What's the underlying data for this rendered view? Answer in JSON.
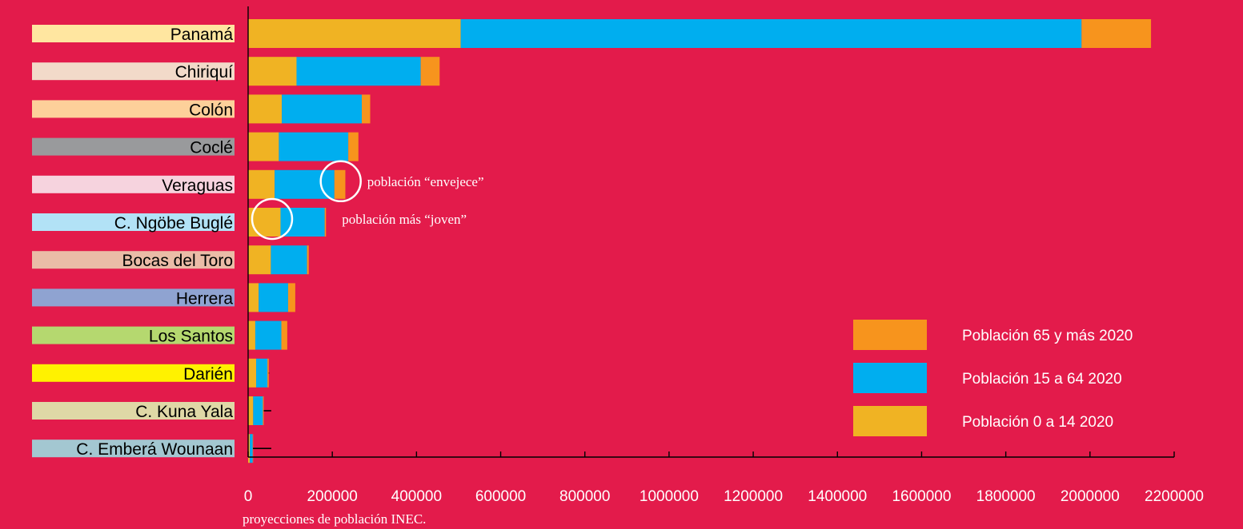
{
  "chart_data": {
    "type": "bar",
    "orientation": "horizontal",
    "stacked": true,
    "categories": [
      "Panamá",
      "Chiriquí",
      "Colón",
      "Coclé",
      "Veraguas",
      "C. Ngöbe Buglé",
      "Bocas del Toro",
      "Herrera",
      "Los Santos",
      "Darién",
      "C. Kuna Yala",
      "C. Emberá Wounaan"
    ],
    "category_colors": [
      "#ffe6a0",
      "#f2dac9",
      "#fdd09a",
      "#999a9c",
      "#f6d3de",
      "#b2e2f6",
      "#eabca7",
      "#8fa3d1",
      "#b5d86f",
      "#fff200",
      "#dfd8a6",
      "#a3c7d1"
    ],
    "series": [
      {
        "name": "Población 0 a 14 2020",
        "color": "#f0b323",
        "values": [
          505000,
          115000,
          80000,
          73000,
          63000,
          77000,
          54000,
          25000,
          17000,
          19000,
          12000,
          4000
        ]
      },
      {
        "name": "Población 15 a 64 2020",
        "color": "#00aeef",
        "values": [
          1475000,
          295000,
          190000,
          165000,
          142000,
          105000,
          86000,
          70000,
          62000,
          27000,
          23000,
          7000
        ]
      },
      {
        "name": "Población 65 y más 2020",
        "color": "#f7941d",
        "values": [
          165000,
          45000,
          20000,
          24000,
          26000,
          3000,
          4000,
          17000,
          14000,
          3000,
          2000,
          500
        ]
      }
    ],
    "legend_order": [
      "Población 65 y más 2020",
      "Población 15 a 64 2020",
      "Población 0 a 14 2020"
    ],
    "xlim": [
      0,
      2200000
    ],
    "xticks": [
      0,
      200000,
      400000,
      600000,
      800000,
      1000000,
      1200000,
      1400000,
      1600000,
      1800000,
      2000000,
      2200000
    ],
    "xtick_labels": [
      "0",
      "200000",
      "400000",
      "600000",
      "800000",
      "1000000",
      "1200000",
      "1400000",
      "1600000",
      "1800000",
      "2000000",
      "2200000"
    ],
    "error_bars": [
      {
        "category": "Darién",
        "value": 50000
      },
      {
        "category": "C. Kuna Yala",
        "value": 55000
      },
      {
        "category": "C. Emberá Wounaan",
        "value": 55000
      }
    ],
    "annotations": [
      {
        "text": "población “envejece”",
        "category": "Veraguas",
        "circle_at": 220000
      },
      {
        "text": "población más “joven”",
        "category": "C. Ngöbe Buglé",
        "circle_at": 57000
      }
    ],
    "legend_position": "bottom-right",
    "grid": false,
    "title": "",
    "xlabel": "",
    "ylabel": ""
  },
  "source_note": "proyecciones de población INEC.",
  "colors": {
    "background": "#e31b4b",
    "axis": "#000000",
    "annotation": "#ffffff"
  }
}
